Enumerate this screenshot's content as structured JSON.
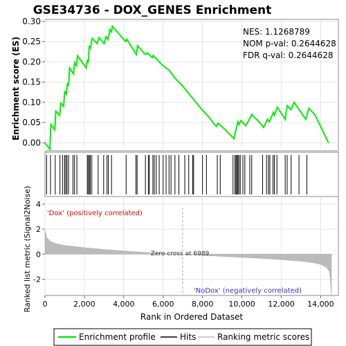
{
  "chart_data": {
    "type": "line",
    "title": "GSE34736 - DOX_GENES Enrichment",
    "stats": {
      "nes": "NES: 1.1268789",
      "nom": "NOM p-val: 0.2644628",
      "fdr": "FDR q-val: 0.2644628"
    },
    "es_panel": {
      "ylabel": "Enrichment score (ES)",
      "ylim": [
        -0.02,
        0.305
      ],
      "yticks": [
        0.0,
        0.05,
        0.1,
        0.15,
        0.2,
        0.25,
        0.3
      ],
      "ytick_labels": [
        "0.00",
        "0.05",
        "0.10",
        "0.15",
        "0.20",
        "0.25",
        "0.30"
      ],
      "series_color": "#00ee00",
      "es_points": [
        [
          0,
          0.0
        ],
        [
          250,
          -0.016
        ],
        [
          300,
          0.045
        ],
        [
          500,
          0.032
        ],
        [
          550,
          0.078
        ],
        [
          750,
          0.068
        ],
        [
          800,
          0.098
        ],
        [
          950,
          0.09
        ],
        [
          1000,
          0.128
        ],
        [
          1080,
          0.12
        ],
        [
          1150,
          0.148
        ],
        [
          1200,
          0.14
        ],
        [
          1250,
          0.185
        ],
        [
          1450,
          0.17
        ],
        [
          1500,
          0.198
        ],
        [
          1600,
          0.19
        ],
        [
          1650,
          0.215
        ],
        [
          2100,
          0.185
        ],
        [
          2150,
          0.205
        ],
        [
          2200,
          0.198
        ],
        [
          2250,
          0.24
        ],
        [
          2300,
          0.232
        ],
        [
          2400,
          0.258
        ],
        [
          2650,
          0.245
        ],
        [
          2750,
          0.26
        ],
        [
          3000,
          0.245
        ],
        [
          3100,
          0.262
        ],
        [
          3200,
          0.255
        ],
        [
          3300,
          0.28
        ],
        [
          3380,
          0.274
        ],
        [
          3420,
          0.288
        ],
        [
          4100,
          0.25
        ],
        [
          4150,
          0.256
        ],
        [
          4650,
          0.218
        ],
        [
          4700,
          0.24
        ],
        [
          5100,
          0.218
        ],
        [
          5200,
          0.222
        ],
        [
          5450,
          0.21
        ],
        [
          5500,
          0.216
        ],
        [
          5700,
          0.205
        ],
        [
          6000,
          0.19
        ],
        [
          6300,
          0.18
        ],
        [
          6600,
          0.16
        ],
        [
          7000,
          0.14
        ],
        [
          7500,
          0.11
        ],
        [
          8000,
          0.08
        ],
        [
          8300,
          0.065
        ],
        [
          8700,
          0.04
        ],
        [
          8800,
          0.048
        ],
        [
          9200,
          0.03
        ],
        [
          9600,
          0.01
        ],
        [
          9700,
          0.032
        ],
        [
          9800,
          0.052
        ],
        [
          9850,
          0.045
        ],
        [
          9950,
          0.055
        ],
        [
          10200,
          0.042
        ],
        [
          10500,
          0.07
        ],
        [
          10900,
          0.05
        ],
        [
          11100,
          0.038
        ],
        [
          11300,
          0.058
        ],
        [
          11400,
          0.052
        ],
        [
          11600,
          0.075
        ],
        [
          11650,
          0.068
        ],
        [
          11800,
          0.088
        ],
        [
          12200,
          0.058
        ],
        [
          12300,
          0.092
        ],
        [
          12500,
          0.082
        ],
        [
          12650,
          0.1
        ],
        [
          13250,
          0.058
        ],
        [
          13400,
          0.085
        ],
        [
          13700,
          0.07
        ],
        [
          14400,
          0.0
        ]
      ]
    },
    "hits": [
      80,
      280,
      520,
      760,
      900,
      1000,
      1060,
      1120,
      1200,
      1420,
      1500,
      1620,
      2150,
      2200,
      2260,
      2300,
      2380,
      2700,
      2980,
      3150,
      3220,
      3380,
      4120,
      4620,
      4680,
      5100,
      5250,
      5300,
      5480,
      5550,
      5650,
      5800,
      6000,
      6150,
      6300,
      6400,
      6600,
      6800,
      7100,
      7300,
      7500,
      7550,
      8000,
      8200,
      8750,
      8900,
      9550,
      9650,
      9700,
      9750,
      9800,
      9850,
      9920,
      10050,
      10150,
      10400,
      10500,
      11050,
      11250,
      11350,
      11420,
      11580,
      11650,
      11780,
      12200,
      12300,
      12500,
      12900,
      13300
    ],
    "colorbar": {
      "segments": [
        [
          "#dd0000",
          0,
          700
        ],
        [
          "#ea4444",
          700,
          2750
        ],
        [
          "#f27878",
          2750,
          3950
        ],
        [
          "#f79c9c",
          3950,
          5300
        ],
        [
          "#f9c6e4",
          5300,
          6989
        ],
        [
          "#d9d9f6",
          6989,
          8700
        ],
        [
          "#bcbcf0",
          8700,
          10200
        ],
        [
          "#8f8fe8",
          10200,
          11400
        ],
        [
          "#5555dd",
          11400,
          13900
        ],
        [
          "#1c00d0",
          13900,
          14500
        ]
      ],
      "label_pos": "'Dox' (positively correlated)",
      "label_neg": "'NoDox' (negatively correlated)"
    },
    "metric_panel": {
      "ylabel": "Ranked list metric (Signal2Noise)",
      "ylim": [
        -3.3,
        4.6
      ],
      "yticks": [
        -2,
        0,
        2,
        4
      ],
      "ytick_labels": [
        "-2",
        "0",
        "2",
        "4"
      ],
      "zero_cross_label": "Zero cross at 6989",
      "zero_cross": 6989,
      "metric_curve": [
        [
          0,
          1.9
        ],
        [
          100,
          1.3
        ],
        [
          300,
          1.0
        ],
        [
          600,
          0.82
        ],
        [
          1000,
          0.7
        ],
        [
          2000,
          0.52
        ],
        [
          3000,
          0.38
        ],
        [
          4000,
          0.26
        ],
        [
          5000,
          0.15
        ],
        [
          6000,
          0.06
        ],
        [
          6989,
          0.0
        ],
        [
          8000,
          -0.1
        ],
        [
          9000,
          -0.18
        ],
        [
          10000,
          -0.26
        ],
        [
          11000,
          -0.34
        ],
        [
          12000,
          -0.44
        ],
        [
          13000,
          -0.56
        ],
        [
          13600,
          -0.68
        ],
        [
          14000,
          -0.82
        ],
        [
          14300,
          -1.05
        ],
        [
          14450,
          -1.4
        ],
        [
          14500,
          -2.2
        ],
        [
          14550,
          -3.3
        ]
      ]
    },
    "xaxis": {
      "xlabel": "Rank in Ordered Dataset",
      "xlim": [
        0,
        14900
      ],
      "xticks": [
        0,
        2000,
        4000,
        6000,
        8000,
        10000,
        12000,
        14000
      ],
      "xtick_labels": [
        "0",
        "2,000",
        "4,000",
        "6,000",
        "8,000",
        "10,000",
        "12,000",
        "14,000"
      ]
    },
    "legend": {
      "placement": "bottom",
      "items": [
        {
          "label": "Enrichment profile",
          "color": "#00ee00"
        },
        {
          "label": "Hits",
          "color": "#000000"
        },
        {
          "label": "Ranking metric scores",
          "color": "#bbbbbb"
        }
      ]
    }
  }
}
